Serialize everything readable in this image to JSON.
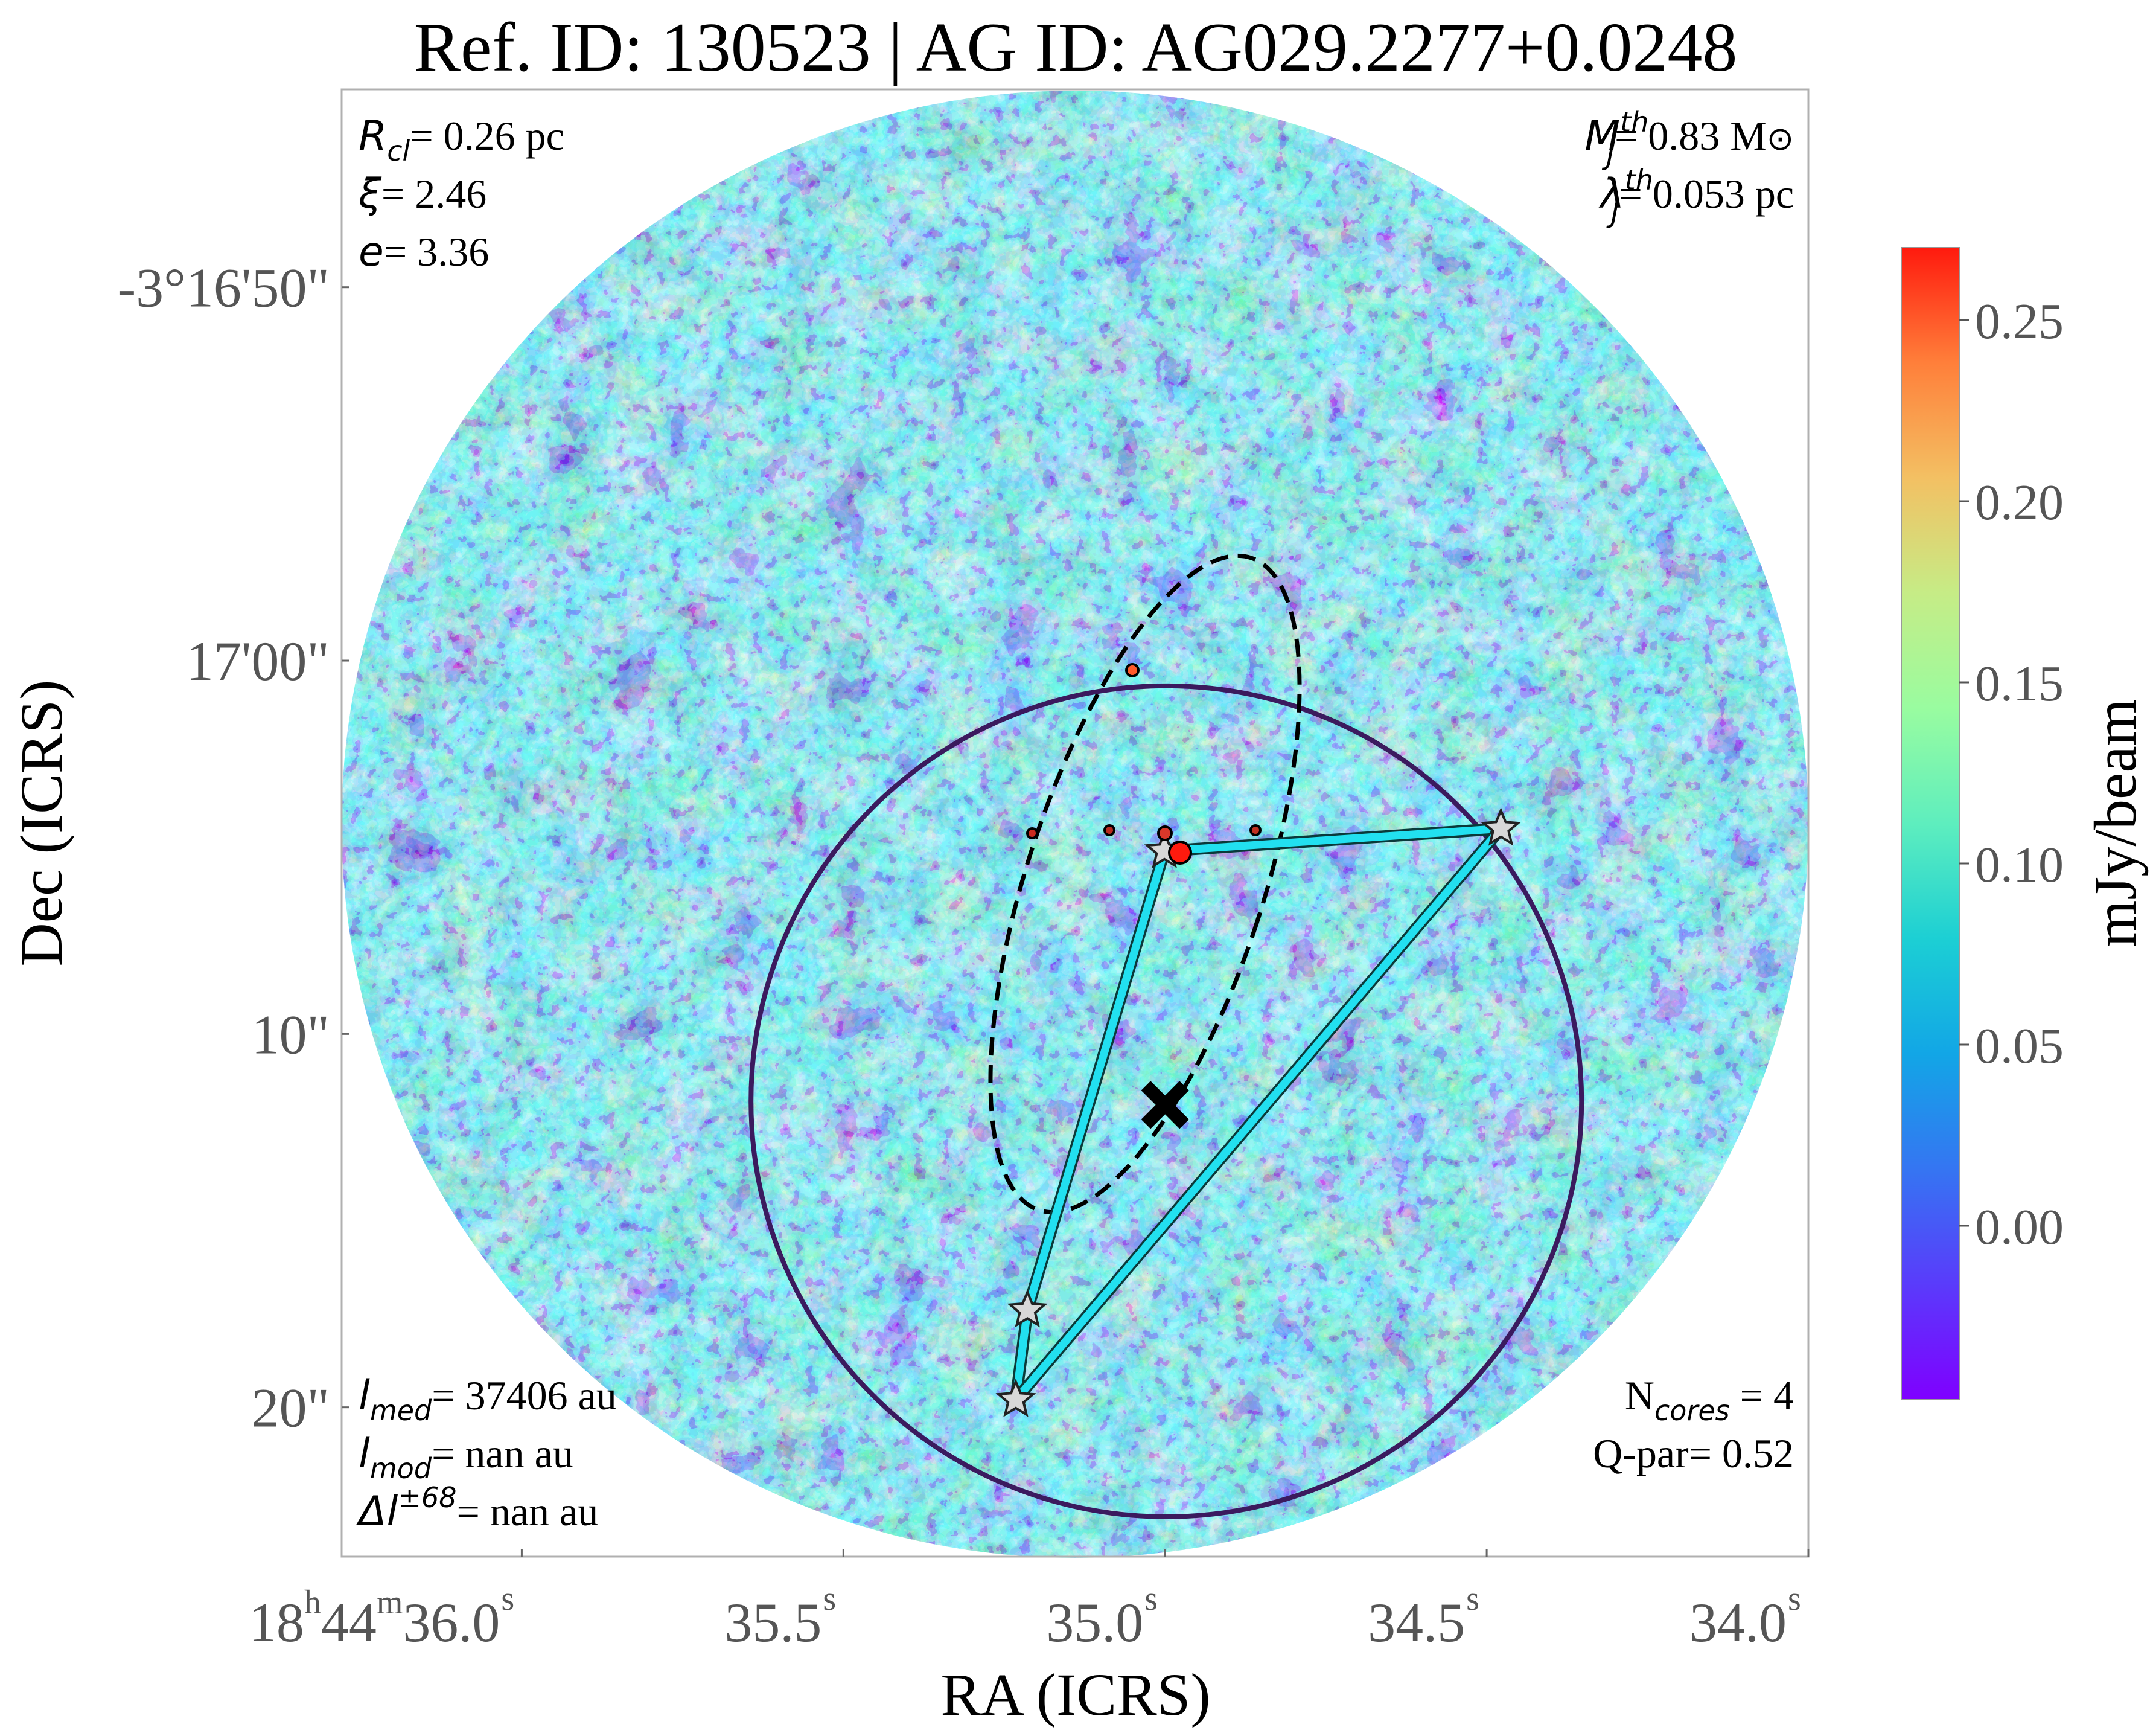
{
  "chart_data": {
    "type": "heatmap",
    "title": "Ref. ID: 130523 | AG ID: AG029.2277+0.0248",
    "xlabel": "RA (ICRS)",
    "ylabel": "Dec (ICRS)",
    "x_ticks": [
      {
        "h": "18",
        "m": "44",
        "s": "36.0"
      },
      {
        "s": "35.5"
      },
      {
        "s": "35.0"
      },
      {
        "s": "34.5"
      },
      {
        "s": "34.0"
      }
    ],
    "x_range_s": [
      36.28,
      34.0
    ],
    "y_ticks": [
      "-3°16'50\"",
      "17'00\"",
      "10\"",
      "20\""
    ],
    "y_tick_values_arcsec": [
      -50,
      -60,
      -70,
      -80
    ],
    "y_range_arcsec": [
      -44.7,
      -84.0
    ],
    "colorbar": {
      "label": "mJy/beam",
      "ticks": [
        "0.25",
        "0.20",
        "0.15",
        "0.10",
        "0.05",
        "0.00"
      ],
      "tick_values": [
        0.25,
        0.2,
        0.15,
        0.1,
        0.05,
        0.0
      ],
      "range": [
        -0.048,
        0.27
      ],
      "colormap": "rainbow"
    },
    "annotations": {
      "top_left": [
        {
          "sym": "R",
          "sub": "cl",
          "rest": "= 0.26 pc"
        },
        {
          "sym": "ξ",
          "rest": "= 2.46"
        },
        {
          "sym": "e",
          "rest": "= 3.36"
        }
      ],
      "top_right": [
        {
          "sym": "M",
          "sub": "J",
          "sup": "th",
          "rest": "= 0.83 M",
          "unit_symbol": "⊙"
        },
        {
          "sym": "λ",
          "sub": "J",
          "sup": "th",
          "rest": "= 0.053 pc"
        }
      ],
      "bottom_left": [
        {
          "sym": "l",
          "sub": "med",
          "rest": "= 37406 au"
        },
        {
          "sym": "l",
          "sub": "mod",
          "rest": "= nan au"
        },
        {
          "sym": "Δl",
          "sup": "±68",
          "rest": "= nan au"
        }
      ],
      "bottom_right": [
        {
          "pre": "N",
          "sub": "cores",
          "rest": " = 4"
        },
        {
          "pre": "Q-par= 0.52"
        }
      ]
    },
    "cores": [
      {
        "ra_s": 35.001,
        "dec_arcsec": -65.1
      },
      {
        "ra_s": 34.478,
        "dec_arcsec": -64.5
      },
      {
        "ra_s": 35.214,
        "dec_arcsec": -77.4
      },
      {
        "ra_s": 35.232,
        "dec_arcsec": -79.8
      }
    ],
    "mst_edges": [
      [
        0,
        1
      ],
      [
        0,
        2
      ],
      [
        2,
        3
      ],
      [
        3,
        1
      ]
    ],
    "clump_center": {
      "ra_s": 35.0,
      "dec_arcsec": -71.9
    },
    "colors": {
      "edge": "#22e0f0",
      "circle": "#3b1a5e",
      "ellipse": "#000000",
      "star": "#d8d8d8",
      "center_marker": "#000000"
    }
  }
}
